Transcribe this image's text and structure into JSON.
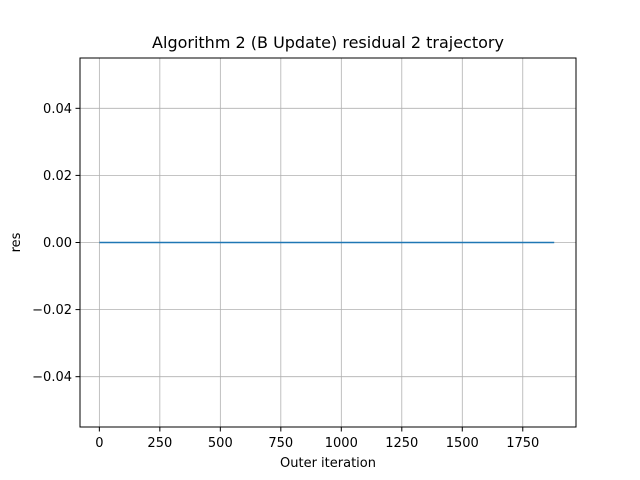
{
  "chart_data": {
    "type": "line",
    "title": "Algorithm 2 (B Update) residual 2 trajectory",
    "xlabel": "Outer iteration",
    "ylabel": "res",
    "xlim": [
      -80,
      1970
    ],
    "ylim": [
      -0.055,
      0.055
    ],
    "x_ticks": [
      0,
      250,
      500,
      750,
      1000,
      1250,
      1500,
      1750
    ],
    "x_tick_labels": [
      "0",
      "250",
      "500",
      "750",
      "1000",
      "1250",
      "1500",
      "1750"
    ],
    "y_ticks": [
      0.04,
      0.02,
      0.0,
      -0.02,
      -0.04
    ],
    "y_tick_labels": [
      "0.04",
      "0.02",
      "0.00",
      "−0.02",
      "−0.04"
    ],
    "grid": true,
    "series": [
      {
        "color": "#1f77b4",
        "x": [
          0,
          1880
        ],
        "y": [
          0,
          0
        ]
      }
    ]
  }
}
